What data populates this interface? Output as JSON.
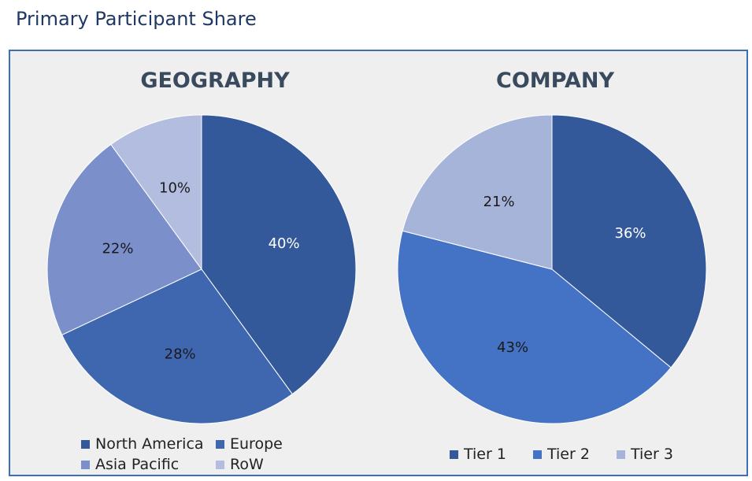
{
  "page": {
    "title": "Primary Participant Share"
  },
  "chart_data": [
    {
      "type": "pie",
      "title": "GEOGRAPHY",
      "categories": [
        "North America",
        "Europe",
        "Asia Pacific",
        "RoW"
      ],
      "values": [
        40,
        28,
        22,
        10
      ],
      "labels": [
        "40%",
        "28%",
        "22%",
        "10%"
      ],
      "colors": [
        "#34599a",
        "#3f67b0",
        "#7b8fcb",
        "#b2bde0"
      ],
      "label_colors": [
        "#ffffff",
        "#1a1a1a",
        "#1a1a1a",
        "#1a1a1a"
      ],
      "legend": {
        "position": "bottom",
        "items": [
          "North America",
          "Europe",
          "Asia Pacific",
          "RoW"
        ]
      }
    },
    {
      "type": "pie",
      "title": "COMPANY",
      "categories": [
        "Tier 1",
        "Tier 2",
        "Tier 3"
      ],
      "values": [
        36,
        43,
        21
      ],
      "labels": [
        "36%",
        "43%",
        "21%"
      ],
      "colors": [
        "#34599a",
        "#4472c4",
        "#a7b4da"
      ],
      "label_colors": [
        "#ffffff",
        "#1a1a1a",
        "#1a1a1a"
      ],
      "legend": {
        "position": "bottom",
        "items": [
          "Tier 1",
          "Tier 2",
          "Tier 3"
        ]
      }
    }
  ]
}
